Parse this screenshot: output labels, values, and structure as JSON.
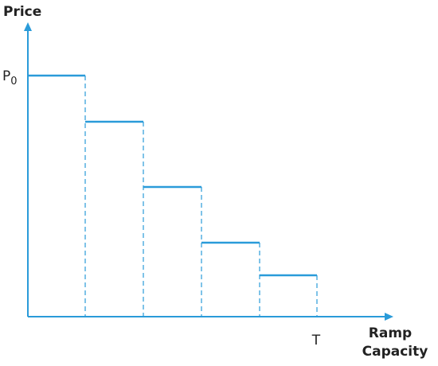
{
  "axes": {
    "y_label": "Price",
    "y_marker": {
      "base": "P",
      "subscript": "0"
    },
    "x_marker": "T",
    "x_label_lines": [
      "Ramp",
      "Capacity"
    ]
  }
}
